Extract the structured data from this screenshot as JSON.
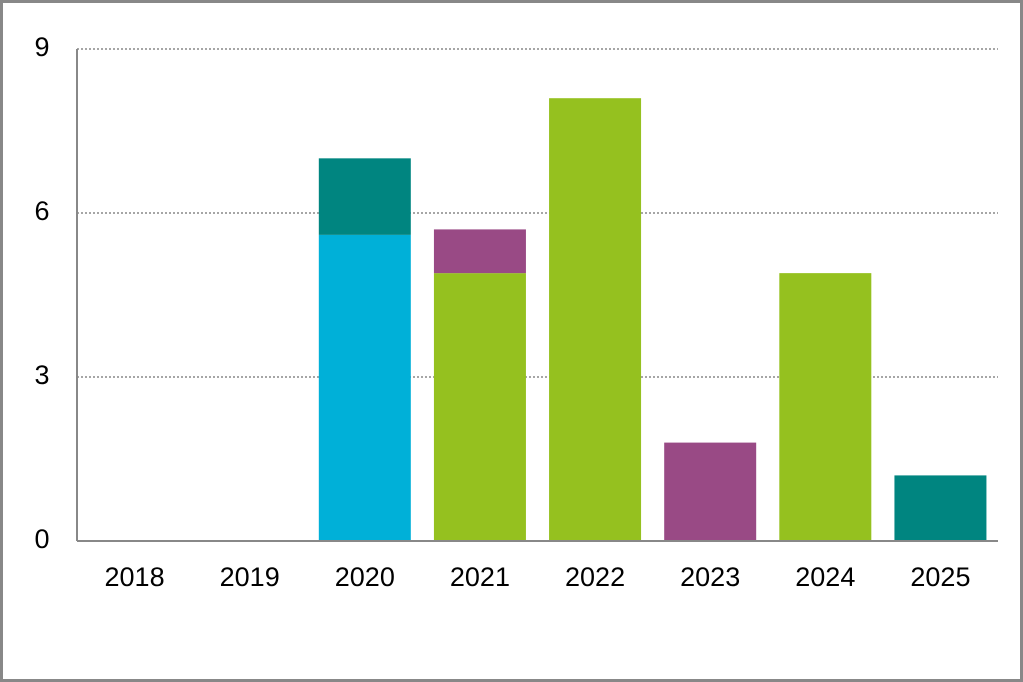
{
  "chart_data": {
    "type": "bar",
    "stacked": true,
    "categories": [
      "2018",
      "2019",
      "2020",
      "2021",
      "2022",
      "2023",
      "2024",
      "2025"
    ],
    "series": [
      {
        "color": "#00b0d8",
        "values": [
          0,
          0,
          5.6,
          0,
          0,
          0,
          0,
          0
        ]
      },
      {
        "color": "#95c11f",
        "values": [
          0,
          0,
          0,
          4.9,
          8.1,
          0,
          4.9,
          0
        ]
      },
      {
        "color": "#008580",
        "values": [
          0,
          0,
          1.4,
          0,
          0,
          0,
          0,
          1.2
        ]
      },
      {
        "color": "#994a85",
        "values": [
          0,
          0,
          0,
          0.8,
          0,
          1.8,
          0,
          0
        ]
      }
    ],
    "ylim": [
      0,
      9
    ],
    "yticks": [
      0,
      3,
      6,
      9
    ],
    "grid": true
  }
}
